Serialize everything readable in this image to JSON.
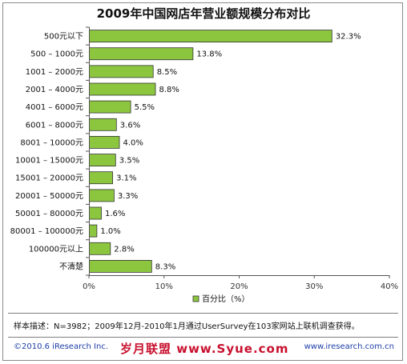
{
  "chart_data": {
    "type": "bar",
    "orientation": "horizontal",
    "title": "2009年中国网店年营业额规模分布对比",
    "categories": [
      "500元以下",
      "500 – 1000元",
      "1001 – 2000元",
      "2001 – 4000元",
      "4001 – 6000元",
      "6001 – 8000元",
      "8001 – 10000元",
      "10001 – 15000元",
      "15001 – 20000元",
      "20001 – 50000元",
      "50001 – 80000元",
      "80001 – 100000元",
      "100000元以上",
      "不清楚"
    ],
    "series": [
      {
        "name": "百分比（%）",
        "values": [
          32.3,
          13.8,
          8.5,
          8.8,
          5.5,
          3.6,
          4.0,
          3.5,
          3.1,
          3.3,
          1.6,
          1.0,
          2.8,
          8.3
        ],
        "labels": [
          "32.3%",
          "13.8%",
          "8.5%",
          "8.8%",
          "5.5%",
          "3.6%",
          "4.0%",
          "3.5%",
          "3.1%",
          "3.3%",
          "1.6%",
          "1.0%",
          "2.8%",
          "8.3%"
        ]
      }
    ],
    "xlim": [
      0,
      40
    ],
    "xticks": [
      0,
      10,
      20,
      30,
      40
    ],
    "xtick_labels": [
      "0%",
      "10%",
      "20%",
      "30%",
      "40%"
    ],
    "grid": false,
    "legend_position": "bottom-center",
    "bar_color": "#8cc63f"
  },
  "note": "样本描述：N=3982；2009年12月-2010年1月通过UserSurvey在103家网站上联机调查获得。",
  "footer": {
    "copyright": "©2010.6 iResearch Inc.",
    "watermark": "岁月联盟 www.Syue.com",
    "site": "www.iresearch.com.cn"
  }
}
